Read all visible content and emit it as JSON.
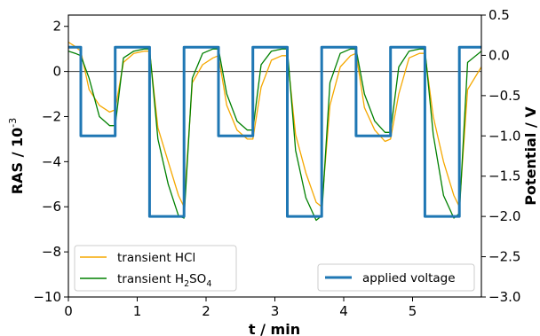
{
  "chart_data": {
    "type": "line",
    "xlabel": "t / min",
    "ylabel_left": "RAS / 10",
    "ylabel_left_exp": "-3",
    "ylabel_right": "Potential / V",
    "xlim": [
      0,
      6.0
    ],
    "ylim_left": [
      -10,
      2.5
    ],
    "ylim_right": [
      -3.0,
      0.5
    ],
    "xticks": [
      "0",
      "1",
      "2",
      "3",
      "4",
      "5"
    ],
    "xtick_values": [
      0,
      1,
      2,
      3,
      4,
      5
    ],
    "yticks_left": [
      "2",
      "0",
      "−2",
      "−4",
      "−6",
      "−8",
      "−10"
    ],
    "ytick_left_values": [
      2,
      0,
      -2,
      -4,
      -6,
      -8,
      -10
    ],
    "yticks_right": [
      "0.5",
      "0.0",
      "−0.5",
      "−1.0",
      "−1.5",
      "−2.0",
      "−2.5",
      "−3.0"
    ],
    "ytick_right_values": [
      0.5,
      0.0,
      -0.5,
      -1.0,
      -1.5,
      -2.0,
      -2.5,
      -3.0
    ],
    "grid": false,
    "reference_line_y": 0,
    "legends": [
      {
        "placement": "lower-left",
        "entries": [
          {
            "label": "transient HCl",
            "color": "#f5a800"
          },
          {
            "label": "transient H",
            "sub": "2",
            "label2": "SO",
            "sub2": "4",
            "color": "#008000"
          }
        ]
      },
      {
        "placement": "lower-right",
        "entries": [
          {
            "label": "applied voltage",
            "color": "#1f77b4"
          }
        ]
      }
    ],
    "series": [
      {
        "name": "applied voltage",
        "axis": "right",
        "color": "#1f77b4",
        "x": [
          0.0,
          0.18,
          0.18,
          0.68,
          0.68,
          1.18,
          1.18,
          1.68,
          1.68,
          2.18,
          2.18,
          2.68,
          2.68,
          3.18,
          3.18,
          3.68,
          3.68,
          4.18,
          4.18,
          4.68,
          4.68,
          5.18,
          5.18,
          5.68,
          5.68,
          6.0
        ],
        "y": [
          0.1,
          0.1,
          -1.0,
          -1.0,
          0.1,
          0.1,
          -2.0,
          -2.0,
          0.1,
          0.1,
          -1.0,
          -1.0,
          0.1,
          0.1,
          -2.0,
          -2.0,
          0.1,
          0.1,
          -1.0,
          -1.0,
          0.1,
          0.1,
          -2.0,
          -2.0,
          0.1,
          0.1
        ]
      },
      {
        "name": "transient HCl",
        "axis": "left",
        "color": "#f5a800",
        "x": [
          0.0,
          0.1,
          0.18,
          0.3,
          0.45,
          0.6,
          0.68,
          0.8,
          0.95,
          1.1,
          1.18,
          1.3,
          1.45,
          1.6,
          1.68,
          1.8,
          1.95,
          2.1,
          2.18,
          2.3,
          2.45,
          2.6,
          2.68,
          2.8,
          2.95,
          3.1,
          3.18,
          3.3,
          3.45,
          3.6,
          3.68,
          3.8,
          3.95,
          4.1,
          4.18,
          4.3,
          4.45,
          4.6,
          4.68,
          4.8,
          4.95,
          5.1,
          5.18,
          5.3,
          5.45,
          5.6,
          5.68,
          5.8,
          6.0
        ],
        "y": [
          1.3,
          1.1,
          0.9,
          -0.8,
          -1.5,
          -1.8,
          -1.7,
          0.4,
          0.8,
          0.9,
          0.9,
          -2.5,
          -4.0,
          -5.5,
          -6.0,
          -0.5,
          0.3,
          0.6,
          0.7,
          -1.5,
          -2.6,
          -3.0,
          -3.0,
          -0.7,
          0.5,
          0.7,
          0.7,
          -2.8,
          -4.5,
          -5.8,
          -6.0,
          -1.5,
          0.2,
          0.7,
          0.8,
          -1.6,
          -2.6,
          -3.1,
          -3.0,
          -1.0,
          0.6,
          0.8,
          0.8,
          -2.0,
          -4.0,
          -5.5,
          -6.0,
          -0.8,
          0.2
        ]
      },
      {
        "name": "transient H2SO4",
        "axis": "left",
        "color": "#008000",
        "x": [
          0.0,
          0.1,
          0.18,
          0.3,
          0.45,
          0.6,
          0.68,
          0.8,
          0.95,
          1.1,
          1.18,
          1.3,
          1.45,
          1.6,
          1.68,
          1.8,
          1.95,
          2.1,
          2.18,
          2.3,
          2.45,
          2.6,
          2.68,
          2.8,
          2.95,
          3.1,
          3.18,
          3.3,
          3.45,
          3.6,
          3.68,
          3.8,
          3.95,
          4.1,
          4.18,
          4.3,
          4.45,
          4.6,
          4.68,
          4.8,
          4.95,
          5.1,
          5.18,
          5.3,
          5.45,
          5.6,
          5.68,
          5.8,
          6.0
        ],
        "y": [
          0.9,
          0.8,
          0.7,
          -0.3,
          -2.0,
          -2.4,
          -2.4,
          0.6,
          0.9,
          1.0,
          1.0,
          -3.0,
          -5.0,
          -6.4,
          -6.5,
          -0.3,
          0.8,
          1.0,
          1.0,
          -1.0,
          -2.2,
          -2.6,
          -2.6,
          0.3,
          0.9,
          1.0,
          1.0,
          -3.5,
          -5.6,
          -6.6,
          -6.4,
          -0.5,
          0.8,
          1.0,
          1.0,
          -1.0,
          -2.2,
          -2.7,
          -2.7,
          0.2,
          0.9,
          1.0,
          1.0,
          -2.8,
          -5.5,
          -6.5,
          -6.3,
          0.4,
          0.9
        ]
      }
    ]
  }
}
